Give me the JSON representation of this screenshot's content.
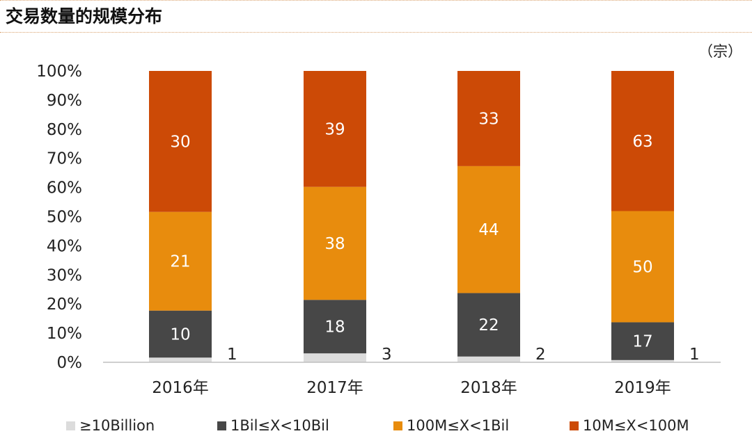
{
  "header": {
    "title": "交易数量的规模分布",
    "unit": "（宗）"
  },
  "colors": {
    "s1": "#dcdcdc",
    "s2": "#474747",
    "s3": "#e88c0d",
    "s4": "#cc4a06",
    "axis": "#bfbfbf",
    "label_light": "#ffffff",
    "label_dark": "#222222"
  },
  "chart_data": {
    "type": "bar",
    "stacked": true,
    "normalized": true,
    "categories": [
      "2016年",
      "2017年",
      "2018年",
      "2019年"
    ],
    "series": [
      {
        "name": "≥10Billion",
        "values": [
          1,
          3,
          2,
          1
        ]
      },
      {
        "name": "1Bil≤X<10Bil",
        "values": [
          10,
          18,
          22,
          17
        ]
      },
      {
        "name": "100M≤X<1Bil",
        "values": [
          21,
          38,
          44,
          50
        ]
      },
      {
        "name": "10M≤X<100M",
        "values": [
          30,
          39,
          33,
          63
        ]
      }
    ],
    "yticks": [
      "0%",
      "10%",
      "20%",
      "30%",
      "40%",
      "50%",
      "60%",
      "70%",
      "80%",
      "90%",
      "100%"
    ],
    "ylim": [
      0,
      100
    ],
    "legend_position": "bottom"
  }
}
